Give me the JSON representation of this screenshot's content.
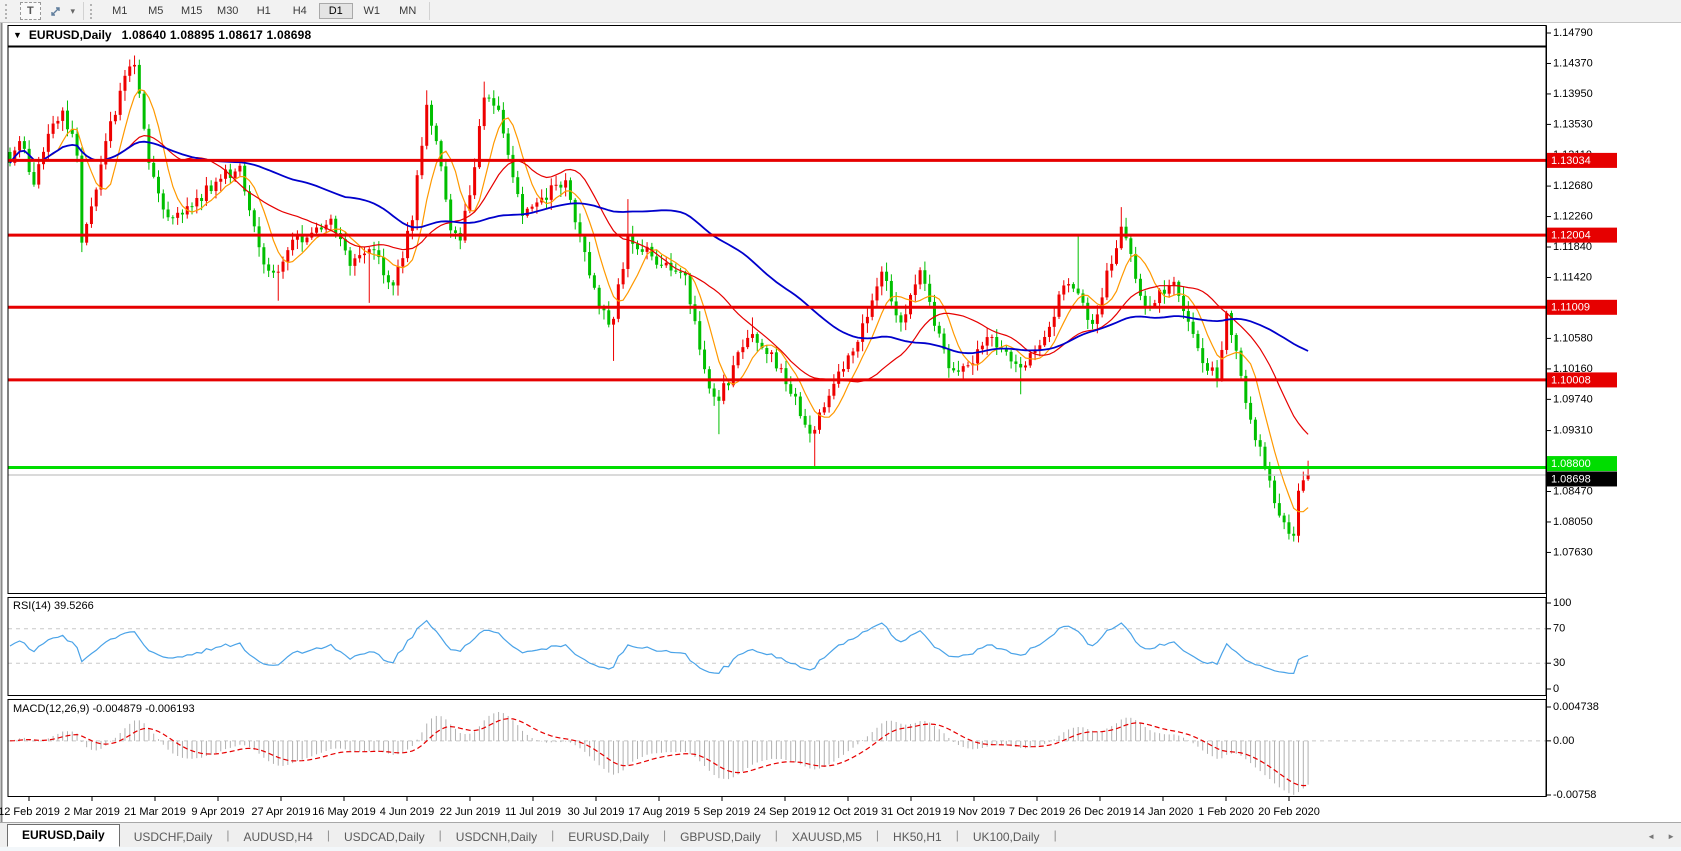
{
  "toolbar": {
    "text_tool": "T",
    "timeframes": [
      "M1",
      "M5",
      "M15",
      "M30",
      "H1",
      "H4",
      "D1",
      "W1",
      "MN"
    ],
    "active_timeframe": "D1"
  },
  "icons": {
    "collapse_triangle": "▼",
    "chevron_down": "▾",
    "tab_scroll_left": "◄",
    "tab_scroll_right": "►"
  },
  "chart_header": {
    "symbol_period": "EURUSD,Daily",
    "ohlc_text": "1.08640 1.08895 1.08617 1.08698"
  },
  "rsi_panel": {
    "label": "RSI(14) 39.5266"
  },
  "macd_panel": {
    "label": "MACD(12,26,9) -0.004879 -0.006193"
  },
  "tabs": [
    "EURUSD,Daily",
    "USDCHF,Daily",
    "AUDUSD,H4",
    "USDCAD,Daily",
    "USDCNH,Daily",
    "EURUSD,Daily",
    "GBPUSD,Daily",
    "XAUUSD,M5",
    "HK50,H1",
    "UK100,Daily"
  ],
  "active_tab_index": 0,
  "chart_data": {
    "type": "candlestick",
    "symbol": "EURUSD",
    "period": "Daily",
    "last_ohlc": {
      "open": 1.0864,
      "high": 1.08895,
      "low": 1.08617,
      "close": 1.08698
    },
    "current_price": {
      "value": 1.08698,
      "label": "1.08698"
    },
    "price_axis_ticks": [
      "1.14790",
      "1.14370",
      "1.13950",
      "1.13530",
      "1.13110",
      "1.12680",
      "1.12260",
      "1.11840",
      "1.11420",
      "1.11000",
      "1.10580",
      "1.10160",
      "1.09740",
      "1.09310",
      "1.08890",
      "1.08470",
      "1.08050",
      "1.07630"
    ],
    "price_axis_step": 0.0042,
    "horizontal_lines": [
      {
        "price": 1.13034,
        "label": "1.13034",
        "color": "#e60000",
        "type": "resistance"
      },
      {
        "price": 1.12004,
        "label": "1.12004",
        "color": "#e60000",
        "type": "resistance"
      },
      {
        "price": 1.11009,
        "label": "1.11009",
        "color": "#e60000",
        "type": "resistance"
      },
      {
        "price": 1.10008,
        "label": "1.10008",
        "color": "#e60000",
        "type": "resistance"
      },
      {
        "price": 1.088,
        "label": "1.08800",
        "color": "#00dd00",
        "type": "support"
      }
    ],
    "x_axis_dates": [
      "12 Feb 2019",
      "2 Mar 2019",
      "21 Mar 2019",
      "9 Apr 2019",
      "27 Apr 2019",
      "16 May 2019",
      "4 Jun 2019",
      "22 Jun 2019",
      "11 Jul 2019",
      "30 Jul 2019",
      "17 Aug 2019",
      "5 Sep 2019",
      "24 Sep 2019",
      "12 Oct 2019",
      "31 Oct 2019",
      "19 Nov 2019",
      "7 Dec 2019",
      "26 Dec 2019",
      "14 Jan 2020",
      "1 Feb 2020",
      "20 Feb 2020"
    ],
    "colors": {
      "up_candle": "#ee0000",
      "down_candle": "#00bf00",
      "current_price_line": "#b4b4b4"
    },
    "moving_averages": [
      {
        "period": 7,
        "color": "#ff9900",
        "width": 1.2
      },
      {
        "period": 22,
        "color": "#e60000",
        "width": 1.2
      },
      {
        "period": 56,
        "color": "#0000cc",
        "width": 1.8
      }
    ],
    "close_anchors": [
      [
        0,
        1.13
      ],
      [
        2,
        1.133
      ],
      [
        5,
        1.127
      ],
      [
        8,
        1.134
      ],
      [
        11,
        1.1372
      ],
      [
        14,
        1.131
      ],
      [
        15,
        1.119
      ],
      [
        17,
        1.124
      ],
      [
        20,
        1.133
      ],
      [
        24,
        1.142
      ],
      [
        26,
        1.1435
      ],
      [
        29,
        1.13
      ],
      [
        33,
        1.1225
      ],
      [
        38,
        1.124
      ],
      [
        43,
        1.1274
      ],
      [
        48,
        1.1296
      ],
      [
        53,
        1.116
      ],
      [
        56,
        1.115
      ],
      [
        59,
        1.1194
      ],
      [
        62,
        1.1197
      ],
      [
        67,
        1.1223
      ],
      [
        71,
        1.1158
      ],
      [
        75,
        1.1181
      ],
      [
        80,
        1.1131
      ],
      [
        84,
        1.1221
      ],
      [
        87,
        1.138
      ],
      [
        89,
        1.133
      ],
      [
        92,
        1.1207
      ],
      [
        94,
        1.1193
      ],
      [
        97,
        1.1294
      ],
      [
        99,
        1.139
      ],
      [
        102,
        1.1373
      ],
      [
        107,
        1.1227
      ],
      [
        111,
        1.1252
      ],
      [
        116,
        1.1276
      ],
      [
        121,
        1.1145
      ],
      [
        125,
        1.1077
      ],
      [
        126,
        1.1085
      ],
      [
        129,
        1.12
      ],
      [
        134,
        1.1171
      ],
      [
        141,
        1.1145
      ],
      [
        146,
        1.0989
      ],
      [
        148,
        1.0972
      ],
      [
        153,
        1.1046
      ],
      [
        155,
        1.1064
      ],
      [
        161,
        1.1017
      ],
      [
        166,
        1.0939
      ],
      [
        168,
        1.0932
      ],
      [
        171,
        1.0979
      ],
      [
        176,
        1.104
      ],
      [
        182,
        1.115
      ],
      [
        186,
        1.108
      ],
      [
        190,
        1.1152
      ],
      [
        196,
        1.1017
      ],
      [
        200,
        1.1021
      ],
      [
        205,
        1.106
      ],
      [
        211,
        1.1018
      ],
      [
        216,
        1.106
      ],
      [
        220,
        1.1131
      ],
      [
        223,
        1.112
      ],
      [
        226,
        1.1078
      ],
      [
        232,
        1.1212
      ],
      [
        237,
        1.1103
      ],
      [
        243,
        1.1136
      ],
      [
        249,
        1.1024
      ],
      [
        252,
        1.1001
      ],
      [
        254,
        1.1093
      ],
      [
        259,
        1.0946
      ],
      [
        264,
        1.0831
      ],
      [
        268,
        1.0786
      ],
      [
        269,
        1.0848
      ],
      [
        271,
        1.08698
      ]
    ],
    "wick_events": [
      {
        "i": 15,
        "low": 1.1177
      },
      {
        "i": 26,
        "high": 1.1448
      },
      {
        "i": 56,
        "low": 1.111
      },
      {
        "i": 75,
        "low": 1.1107
      },
      {
        "i": 87,
        "high": 1.14
      },
      {
        "i": 94,
        "low": 1.1181
      },
      {
        "i": 99,
        "high": 1.1412
      },
      {
        "i": 126,
        "low": 1.1027
      },
      {
        "i": 129,
        "high": 1.125
      },
      {
        "i": 148,
        "low": 1.0926
      },
      {
        "i": 155,
        "high": 1.1087
      },
      {
        "i": 168,
        "low": 1.0879
      },
      {
        "i": 211,
        "low": 1.0981
      },
      {
        "i": 223,
        "high": 1.1199
      },
      {
        "i": 232,
        "high": 1.1239
      },
      {
        "i": 268,
        "low": 1.0778
      }
    ],
    "rsi": {
      "period": 14,
      "current": 39.5266,
      "levels": [
        100,
        70,
        30,
        0
      ],
      "dashed_levels": [
        70,
        30
      ],
      "line_color": "#4aa3e8"
    },
    "macd": {
      "fast": 12,
      "slow": 26,
      "signal_period": 9,
      "current_macd": -0.004879,
      "current_signal": -0.006193,
      "axis_labels": [
        "0.004738",
        "0.00",
        "-0.00758"
      ],
      "axis_values": [
        0.004738,
        0.0,
        -0.00758
      ],
      "histogram_color": "#b0b0b0",
      "signal_color": "#e60000"
    }
  }
}
